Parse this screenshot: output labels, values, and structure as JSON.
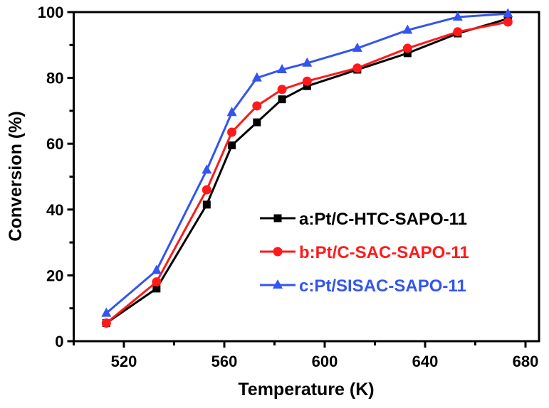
{
  "chart_data": {
    "type": "line",
    "title": "",
    "xlabel": "Temperature (K)",
    "ylabel": "Conversion (%)",
    "xlim": [
      500,
      680
    ],
    "ylim": [
      0,
      100
    ],
    "xticks": [
      520,
      560,
      600,
      640,
      680
    ],
    "yticks": [
      0,
      20,
      40,
      60,
      80,
      100
    ],
    "grid": false,
    "legend_position": "center-right",
    "x": [
      513,
      533,
      553,
      563,
      573,
      583,
      593,
      613,
      633,
      653,
      673
    ],
    "series": [
      {
        "name": "a:Pt/C-HTC-SAPO-11",
        "color": "#000000",
        "marker": "square",
        "values": [
          5.5,
          16,
          41.5,
          59.5,
          66.5,
          73.5,
          77.5,
          82.5,
          87.5,
          93.5,
          98
        ]
      },
      {
        "name": "b:Pt/C-SAC-SAPO-11",
        "color": "#ff1a1a",
        "marker": "circle",
        "values": [
          5.5,
          18,
          46,
          63.5,
          71.5,
          76.5,
          79,
          83,
          89,
          94,
          97
        ]
      },
      {
        "name": "c:Pt/SISAC-SAPO-11",
        "color": "#3355ee",
        "marker": "triangle",
        "values": [
          8.5,
          21.5,
          52,
          69.5,
          80,
          82.5,
          84.5,
          89,
          94.5,
          98.5,
          99.5
        ]
      }
    ]
  }
}
